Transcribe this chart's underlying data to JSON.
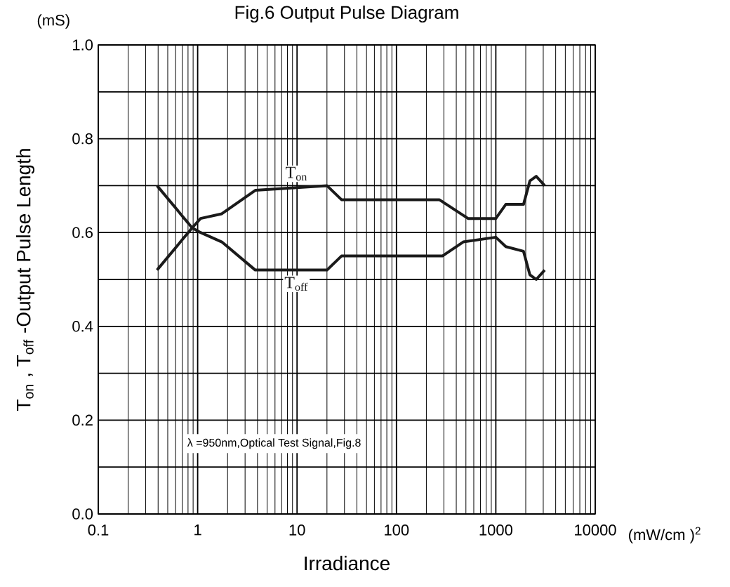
{
  "chart_data": {
    "type": "line",
    "title": "Fig.6 Output Pulse Diagram",
    "xlabel": "Irradiance",
    "ylabel": "T$_{on}$ , T$_{off}$ -Output Pulse Length",
    "annotations": [
      "(mS)",
      "(mW/cm )$^{2}$",
      "λ =950nm,Optical Test Signal,Fig.8"
    ],
    "log": "x",
    "grid": true,
    "line_style": "solid",
    "xlim": [
      0.1,
      10000
    ],
    "xticks": [
      0.1,
      1,
      10,
      100,
      1000,
      10000
    ],
    "ylim": [
      0,
      1
    ],
    "yticks": [
      {
        "value": 0,
        "label": "0.0"
      },
      {
        "value": 0.1,
        "label": null
      },
      {
        "value": 0.2,
        "label": "0.2"
      },
      {
        "value": 0.3,
        "label": null
      },
      {
        "value": 0.4,
        "label": "0.4"
      },
      {
        "value": 0.5,
        "label": null
      },
      {
        "value": 0.6,
        "label": "0.6"
      },
      {
        "value": 0.7,
        "label": null
      },
      {
        "value": 0.8,
        "label": "0.8"
      },
      {
        "value": 0.9,
        "label": null
      },
      {
        "value": 1,
        "label": "1.0"
      }
    ],
    "series": [
      {
        "name": "T$_{on}$",
        "color": "#1a1a1a",
        "x": [
          0.39,
          0.88,
          1.07,
          1.75,
          3.8,
          20,
          28,
          270,
          525,
          1000,
          1260,
          1900,
          2200,
          2550,
          3100
        ],
        "values": [
          0.52,
          0.61,
          0.63,
          0.64,
          0.69,
          0.7,
          0.67,
          0.67,
          0.63,
          0.63,
          0.66,
          0.66,
          0.71,
          0.72,
          0.7
        ]
      },
      {
        "name": "T$_{off}$",
        "color": "#1a1a1a",
        "x": [
          0.39,
          0.88,
          1.07,
          1.75,
          3.8,
          20,
          28,
          290,
          470,
          1000,
          1260,
          1900,
          2200,
          2550,
          3100
        ],
        "values": [
          0.7,
          0.61,
          0.6,
          0.58,
          0.52,
          0.52,
          0.55,
          0.55,
          0.58,
          0.59,
          0.57,
          0.56,
          0.51,
          0.5,
          0.52
        ]
      }
    ]
  }
}
